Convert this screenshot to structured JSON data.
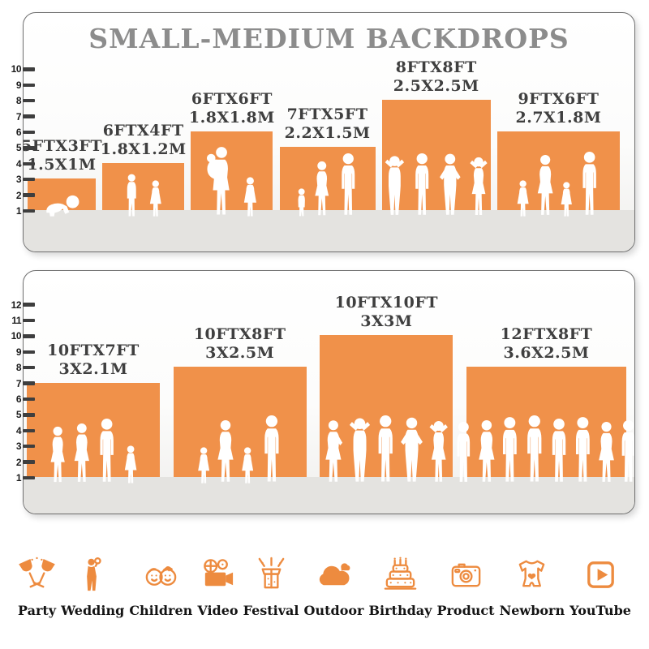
{
  "title": "SMALL-MEDIUM BACKDROPS",
  "colors": {
    "bar_orange": "#F0914A",
    "icon_orange": "#ED8B3F",
    "title_gray": "#8C8C8C",
    "label_gray": "#3F3F3F",
    "floor_gray": "#E4E3E0",
    "tick_dark": "#3E3E3E",
    "panel_border": "#6F6F6F"
  },
  "chart_data": [
    {
      "type": "bar",
      "title": "SMALL-MEDIUM BACKDROPS",
      "ylabel": "",
      "xlabel": "",
      "ylim": [
        1,
        10
      ],
      "y_axis": {
        "ticks": [
          1,
          2,
          3,
          4,
          5,
          6,
          7,
          8,
          9,
          10
        ],
        "unit": "ft"
      },
      "bars": [
        {
          "size_ft": "5FTX3FT",
          "size_m": "1.5X1M",
          "width_ft": 5,
          "height_ft": 3,
          "figures": [
            {
              "type": "baby-crawling",
              "h": 30
            }
          ]
        },
        {
          "size_ft": "6FTX4FT",
          "size_m": "1.8X1.2M",
          "width_ft": 6,
          "height_ft": 4,
          "figures": [
            {
              "type": "boy",
              "h": 54
            },
            {
              "type": "girl",
              "h": 46
            }
          ]
        },
        {
          "size_ft": "6FTX6FT",
          "size_m": "1.8X1.8M",
          "width_ft": 6,
          "height_ft": 6,
          "figures": [
            {
              "type": "woman-holding-baby",
              "h": 88
            },
            {
              "type": "girl",
              "h": 50
            }
          ]
        },
        {
          "size_ft": "7FTX5FT",
          "size_m": "2.2X1.5M",
          "width_ft": 7,
          "height_ft": 5,
          "figures": [
            {
              "type": "toddler",
              "h": 36
            },
            {
              "type": "woman",
              "h": 70
            },
            {
              "type": "man",
              "h": 80
            }
          ]
        },
        {
          "size_ft": "8FTX8FT",
          "size_m": "2.5X2.5M",
          "width_ft": 8,
          "height_ft": 8,
          "figures": [
            {
              "type": "man-arms-up",
              "h": 78
            },
            {
              "type": "man",
              "h": 80
            },
            {
              "type": "man-hands-on-hips",
              "h": 80
            },
            {
              "type": "woman-arms-up",
              "h": 76
            }
          ]
        },
        {
          "size_ft": "9FTX6FT",
          "size_m": "2.7X1.8M",
          "width_ft": 9,
          "height_ft": 6,
          "figures": [
            {
              "type": "girl",
              "h": 46
            },
            {
              "type": "woman",
              "h": 78
            },
            {
              "type": "girl",
              "h": 44
            },
            {
              "type": "man",
              "h": 82
            }
          ]
        }
      ]
    },
    {
      "type": "bar",
      "title": "",
      "ylabel": "",
      "xlabel": "",
      "ylim": [
        1,
        12
      ],
      "y_axis": {
        "ticks": [
          1,
          2,
          3,
          4,
          5,
          6,
          7,
          8,
          9,
          10,
          11,
          12
        ],
        "unit": "ft"
      },
      "bars": [
        {
          "size_ft": "10FTX7FT",
          "size_m": "3X2.1M",
          "width_ft": 10,
          "height_ft": 7,
          "figures": [
            {
              "type": "woman",
              "h": 72
            },
            {
              "type": "woman",
              "h": 76
            },
            {
              "type": "man",
              "h": 82
            },
            {
              "type": "girl",
              "h": 48
            }
          ]
        },
        {
          "size_ft": "10FTX8FT",
          "size_m": "3X2.5M",
          "width_ft": 10,
          "height_ft": 8,
          "figures": [
            {
              "type": "girl",
              "h": 46
            },
            {
              "type": "woman",
              "h": 80
            },
            {
              "type": "girl",
              "h": 46
            },
            {
              "type": "man",
              "h": 86
            }
          ]
        },
        {
          "size_ft": "10FTX10FT",
          "size_m": "3X3M",
          "width_ft": 10,
          "height_ft": 10,
          "figures": [
            {
              "type": "woman-hand-on-hip",
              "h": 80
            },
            {
              "type": "man-arms-up",
              "h": 84
            },
            {
              "type": "man",
              "h": 86
            },
            {
              "type": "man-hands-on-hips",
              "h": 84
            },
            {
              "type": "woman-arms-up",
              "h": 80
            }
          ]
        },
        {
          "size_ft": "12FTX8FT",
          "size_m": "3.6X2.5M",
          "width_ft": 12,
          "height_ft": 8,
          "figures": [
            {
              "type": "man",
              "h": 78
            },
            {
              "type": "woman",
              "h": 80
            },
            {
              "type": "man",
              "h": 84
            },
            {
              "type": "man",
              "h": 86
            },
            {
              "type": "man",
              "h": 82
            },
            {
              "type": "man",
              "h": 84
            },
            {
              "type": "woman",
              "h": 78
            },
            {
              "type": "man",
              "h": 80
            }
          ]
        }
      ]
    }
  ],
  "categories": [
    {
      "label": "Party",
      "icon": "party-glasses"
    },
    {
      "label": "Wedding",
      "icon": "wedding-couple"
    },
    {
      "label": "Children",
      "icon": "children-faces"
    },
    {
      "label": "Video",
      "icon": "video-camera"
    },
    {
      "label": "Festival",
      "icon": "festival-gift"
    },
    {
      "label": "Outdoor",
      "icon": "outdoor-cloud"
    },
    {
      "label": "Birthday",
      "icon": "birthday-cake"
    },
    {
      "label": "Product",
      "icon": "product-camera"
    },
    {
      "label": "Newborn",
      "icon": "newborn-onesie"
    },
    {
      "label": "YouTube",
      "icon": "youtube-play"
    }
  ]
}
